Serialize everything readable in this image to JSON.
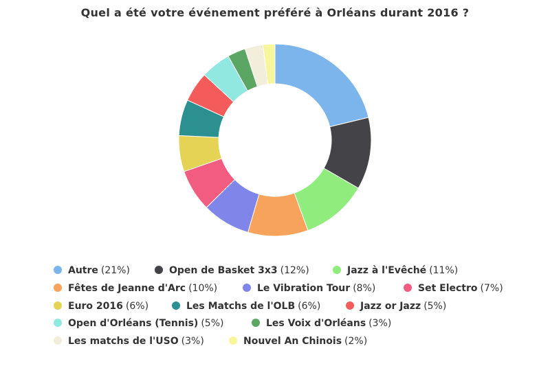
{
  "chart_data": {
    "type": "pie",
    "variant": "donut",
    "title": "Quel a été votre événement préféré à Orléans durant 2016 ?",
    "legend_position": "bottom",
    "series": [
      {
        "name": "Autre",
        "value": 21,
        "label": "(21%)",
        "color": "#7cb5ec"
      },
      {
        "name": "Open de Basket 3x3",
        "value": 12,
        "label": "(12%)",
        "color": "#434348"
      },
      {
        "name": "Jazz à l'Evêché",
        "value": 11,
        "label": "(11%)",
        "color": "#90ed7d"
      },
      {
        "name": "Fêtes de Jeanne d'Arc",
        "value": 10,
        "label": "(10%)",
        "color": "#f7a35c"
      },
      {
        "name": "Le Vibration Tour",
        "value": 8,
        "label": "(8%)",
        "color": "#8085e9"
      },
      {
        "name": "Set Electro",
        "value": 7,
        "label": "(7%)",
        "color": "#f15c80"
      },
      {
        "name": "Euro 2016",
        "value": 6,
        "label": "(6%)",
        "color": "#e4d354"
      },
      {
        "name": "Les Matchs de l'OLB",
        "value": 6,
        "label": "(6%)",
        "color": "#2b908f"
      },
      {
        "name": "Jazz or Jazz",
        "value": 5,
        "label": "(5%)",
        "color": "#f45b5b"
      },
      {
        "name": "Open d'Orléans (Tennis)",
        "value": 5,
        "label": "(5%)",
        "color": "#91e8e1"
      },
      {
        "name": "Les Voix d'Orléans",
        "value": 3,
        "label": "(3%)",
        "color": "#5aa662"
      },
      {
        "name": "Les matchs de l'USO",
        "value": 3,
        "label": "(3%)",
        "color": "#f2eedb"
      },
      {
        "name": "Nouvel An Chinois",
        "value": 2,
        "label": "(2%)",
        "color": "#f7f69c"
      }
    ]
  }
}
